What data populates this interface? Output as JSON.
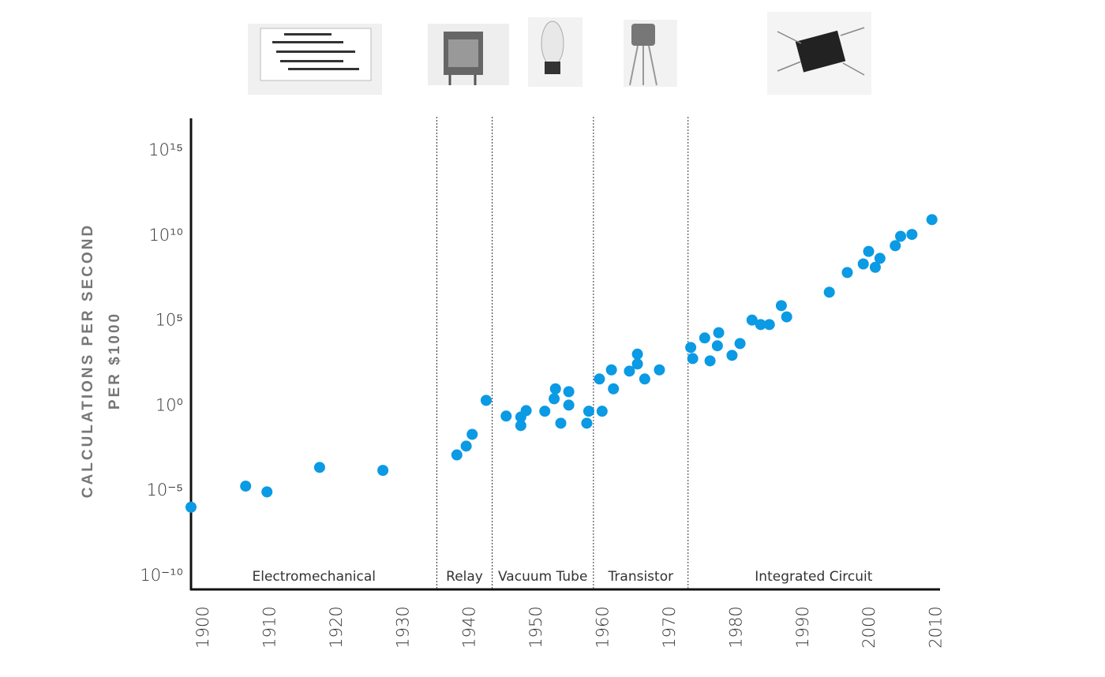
{
  "chart_data": {
    "type": "scatter",
    "y_label": [
      "CALCULATIONS PER SECOND",
      "PER $1000"
    ],
    "yscale": "log",
    "color": "#0b9ae4",
    "x": [
      1898.1,
      1906.3,
      1909.5,
      1917.4,
      1926.9,
      1938.0,
      1939.4,
      1940.3,
      1942.4,
      1945.4,
      1947.6,
      1947.6,
      1948.4,
      1951.2,
      1952.6,
      1952.8,
      1953.6,
      1954.8,
      1954.8,
      1957.5,
      1957.8,
      1959.4,
      1959.8,
      1961.2,
      1961.5,
      1963.9,
      1965.1,
      1965.1,
      1966.2,
      1968.4,
      1973.1,
      1973.4,
      1975.2,
      1976.0,
      1977.1,
      1977.3,
      1979.3,
      1980.5,
      1982.3,
      1983.6,
      1984.9,
      1986.7,
      1987.5,
      1993.9,
      1996.6,
      1999.0,
      1999.8,
      2000.8,
      2001.5,
      2003.8,
      2004.6,
      2006.3,
      2009.3
    ],
    "values": [
      1.1e-06,
      1.9e-05,
      8.7e-06,
      0.00024,
      0.00016,
      0.0013,
      0.0043,
      0.021,
      2.1,
      0.25,
      0.22,
      0.069,
      0.52,
      0.48,
      2.6,
      10,
      0.095,
      6.8,
      1.1,
      0.095,
      0.48,
      38,
      0.48,
      130,
      10,
      110,
      1100,
      290,
      38,
      130,
      2700,
      600,
      9800,
      440,
      3400,
      20000,
      930,
      4600,
      110000,
      60000,
      60000,
      780000,
      170000,
      4800000.0,
      69000000.0,
      220000000.0,
      1200000000.0,
      140000000.0,
      470000000.0,
      2600000000.0,
      9300000000.0,
      12000000000.0,
      89000000000.0
    ],
    "xlim": [
      1898.1,
      2010.4
    ],
    "xticks": [
      1900,
      1910,
      1920,
      1930,
      1940,
      1950,
      1960,
      1970,
      1980,
      1990,
      2000,
      2010
    ],
    "ylim": [
      1.6e-11,
      8e+16
    ],
    "yticks": [
      {
        "value": 1e-10,
        "label": "10⁻¹⁰"
      },
      {
        "value": 1e-05,
        "label": "10⁻⁵"
      },
      {
        "value": 1,
        "label": "10⁰"
      },
      {
        "value": 100000.0,
        "label": "10⁵"
      },
      {
        "value": 10000000000.0,
        "label": "10¹⁰"
      },
      {
        "value": 1000000000000000.0,
        "label": "10¹⁵"
      }
    ],
    "dividers": [
      1935.0,
      1943.3,
      1958.5,
      1972.7
    ],
    "eras": [
      "Electromechanical",
      "Relay",
      "Vacuum Tube",
      "Transistor",
      "Integrated Circuit"
    ]
  }
}
